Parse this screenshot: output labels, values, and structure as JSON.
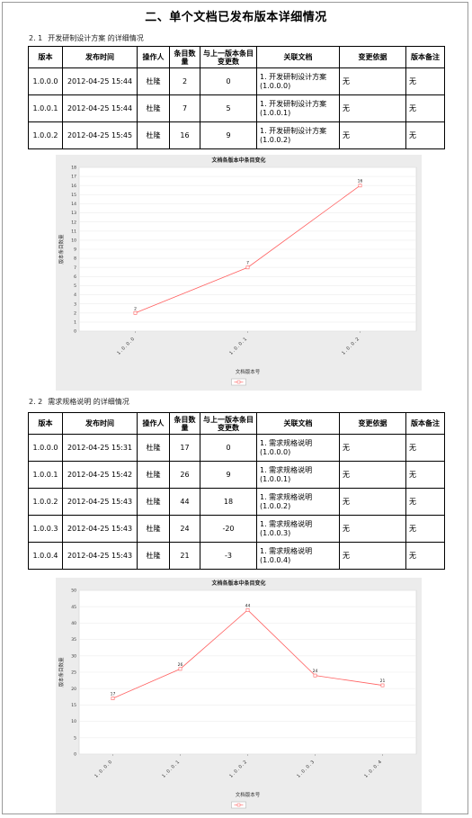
{
  "doc_title": "二、单个文档已发布版本详细情况",
  "table_headers": [
    "版本",
    "发布时间",
    "操作人",
    "条目数量",
    "与上一版本条目变更数",
    "关联文档",
    "变更依据",
    "版本备注"
  ],
  "section1": {
    "number": "2. 1",
    "heading": "开发研制设计方案 的详细情况",
    "rows": [
      [
        "1.0.0.0",
        "2012-04-25 15:44",
        "杜隆",
        "2",
        "0",
        "1. 开发研制设计方案 (1.0.0.0)",
        "无",
        "无"
      ],
      [
        "1.0.0.1",
        "2012-04-25 15:44",
        "杜隆",
        "7",
        "5",
        "1. 开发研制设计方案 (1.0.0.1)",
        "无",
        "无"
      ],
      [
        "1.0.0.2",
        "2012-04-25 15:45",
        "杜隆",
        "16",
        "9",
        "1. 开发研制设计方案 (1.0.0.2)",
        "无",
        "无"
      ]
    ]
  },
  "section2": {
    "number": "2. 2",
    "heading": "需求规格说明 的详细情况",
    "rows": [
      [
        "1.0.0.0",
        "2012-04-25 15:31",
        "杜隆",
        "17",
        "0",
        "1. 需求规格说明 (1.0.0.0)",
        "无",
        "无"
      ],
      [
        "1.0.0.1",
        "2012-04-25 15:42",
        "杜隆",
        "26",
        "9",
        "1. 需求规格说明 (1.0.0.1)",
        "无",
        "无"
      ],
      [
        "1.0.0.2",
        "2012-04-25 15:43",
        "杜隆",
        "44",
        "18",
        "1. 需求规格说明 (1.0.0.2)",
        "无",
        "无"
      ],
      [
        "1.0.0.3",
        "2012-04-25 15:43",
        "杜隆",
        "24",
        "-20",
        "1. 需求规格说明 (1.0.0.3)",
        "无",
        "无"
      ],
      [
        "1.0.0.4",
        "2012-04-25 15:43",
        "杜隆",
        "21",
        "-3",
        "1. 需求规格说明 (1.0.0.4)",
        "无",
        "无"
      ]
    ]
  },
  "chart_data": [
    {
      "type": "line",
      "title": "文档各版本中条目变化",
      "xlabel": "文档版本号",
      "ylabel": "版本条目数量",
      "categories": [
        "1.0.0.0",
        "1.0.0.1",
        "1.0.0.2"
      ],
      "values": [
        2,
        7,
        16
      ],
      "ylim": [
        0,
        18
      ],
      "yticks": [
        0,
        1,
        2,
        3,
        4,
        5,
        6,
        7,
        8,
        9,
        10,
        11,
        12,
        13,
        14,
        15,
        16,
        17,
        18
      ],
      "grid": true,
      "line_color": "#ff6060",
      "legend_placement": "bottom-center"
    },
    {
      "type": "line",
      "title": "文档各版本中条目变化",
      "xlabel": "文档版本号",
      "ylabel": "版本条目数量",
      "categories": [
        "1.0.0.0",
        "1.0.0.1",
        "1.0.0.2",
        "1.0.0.3",
        "1.0.0.4"
      ],
      "values": [
        17,
        26,
        44,
        24,
        21
      ],
      "ylim": [
        0,
        50
      ],
      "yticks": [
        0,
        5,
        10,
        15,
        20,
        25,
        30,
        35,
        40,
        45,
        50
      ],
      "grid": true,
      "line_color": "#ff6060",
      "legend_placement": "bottom-center"
    }
  ]
}
